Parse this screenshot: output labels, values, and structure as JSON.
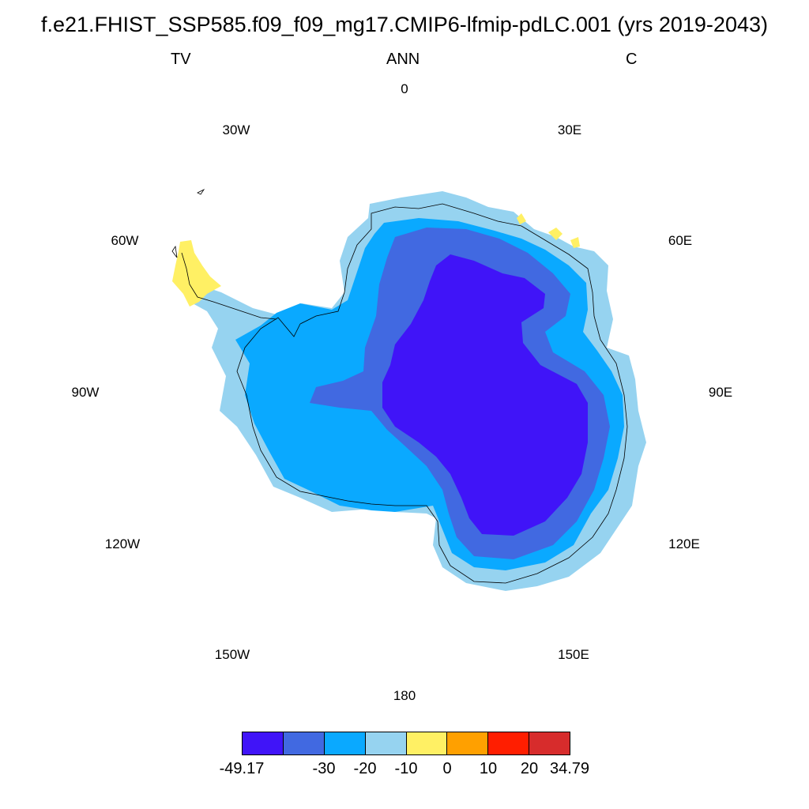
{
  "title": "f.e21.FHIST_SSP585.f09_f09_mg17.CMIP6-lfmip-pdLC.001 (yrs 2019-2043)",
  "left_string": "TV",
  "center_string": "ANN",
  "right_string": "C",
  "longitude_labels": [
    "0",
    "30E",
    "60E",
    "90E",
    "120E",
    "150E",
    "180",
    "150W",
    "120W",
    "90W",
    "60W",
    "30W"
  ],
  "colorbar": {
    "colors": [
      "#4014f8",
      "#4169e1",
      "#0aa9ff",
      "#96d3f0",
      "#fff064",
      "#ffa000",
      "#ff1e00",
      "#d72c2c"
    ],
    "labels": [
      "-49.17",
      "-30",
      "-20",
      "-10",
      "0",
      "10",
      "20",
      "34.79"
    ]
  },
  "map": {
    "projection": "south-polar-stereographic",
    "variable": "TV",
    "units": "C",
    "coastline_color": "#000000"
  }
}
